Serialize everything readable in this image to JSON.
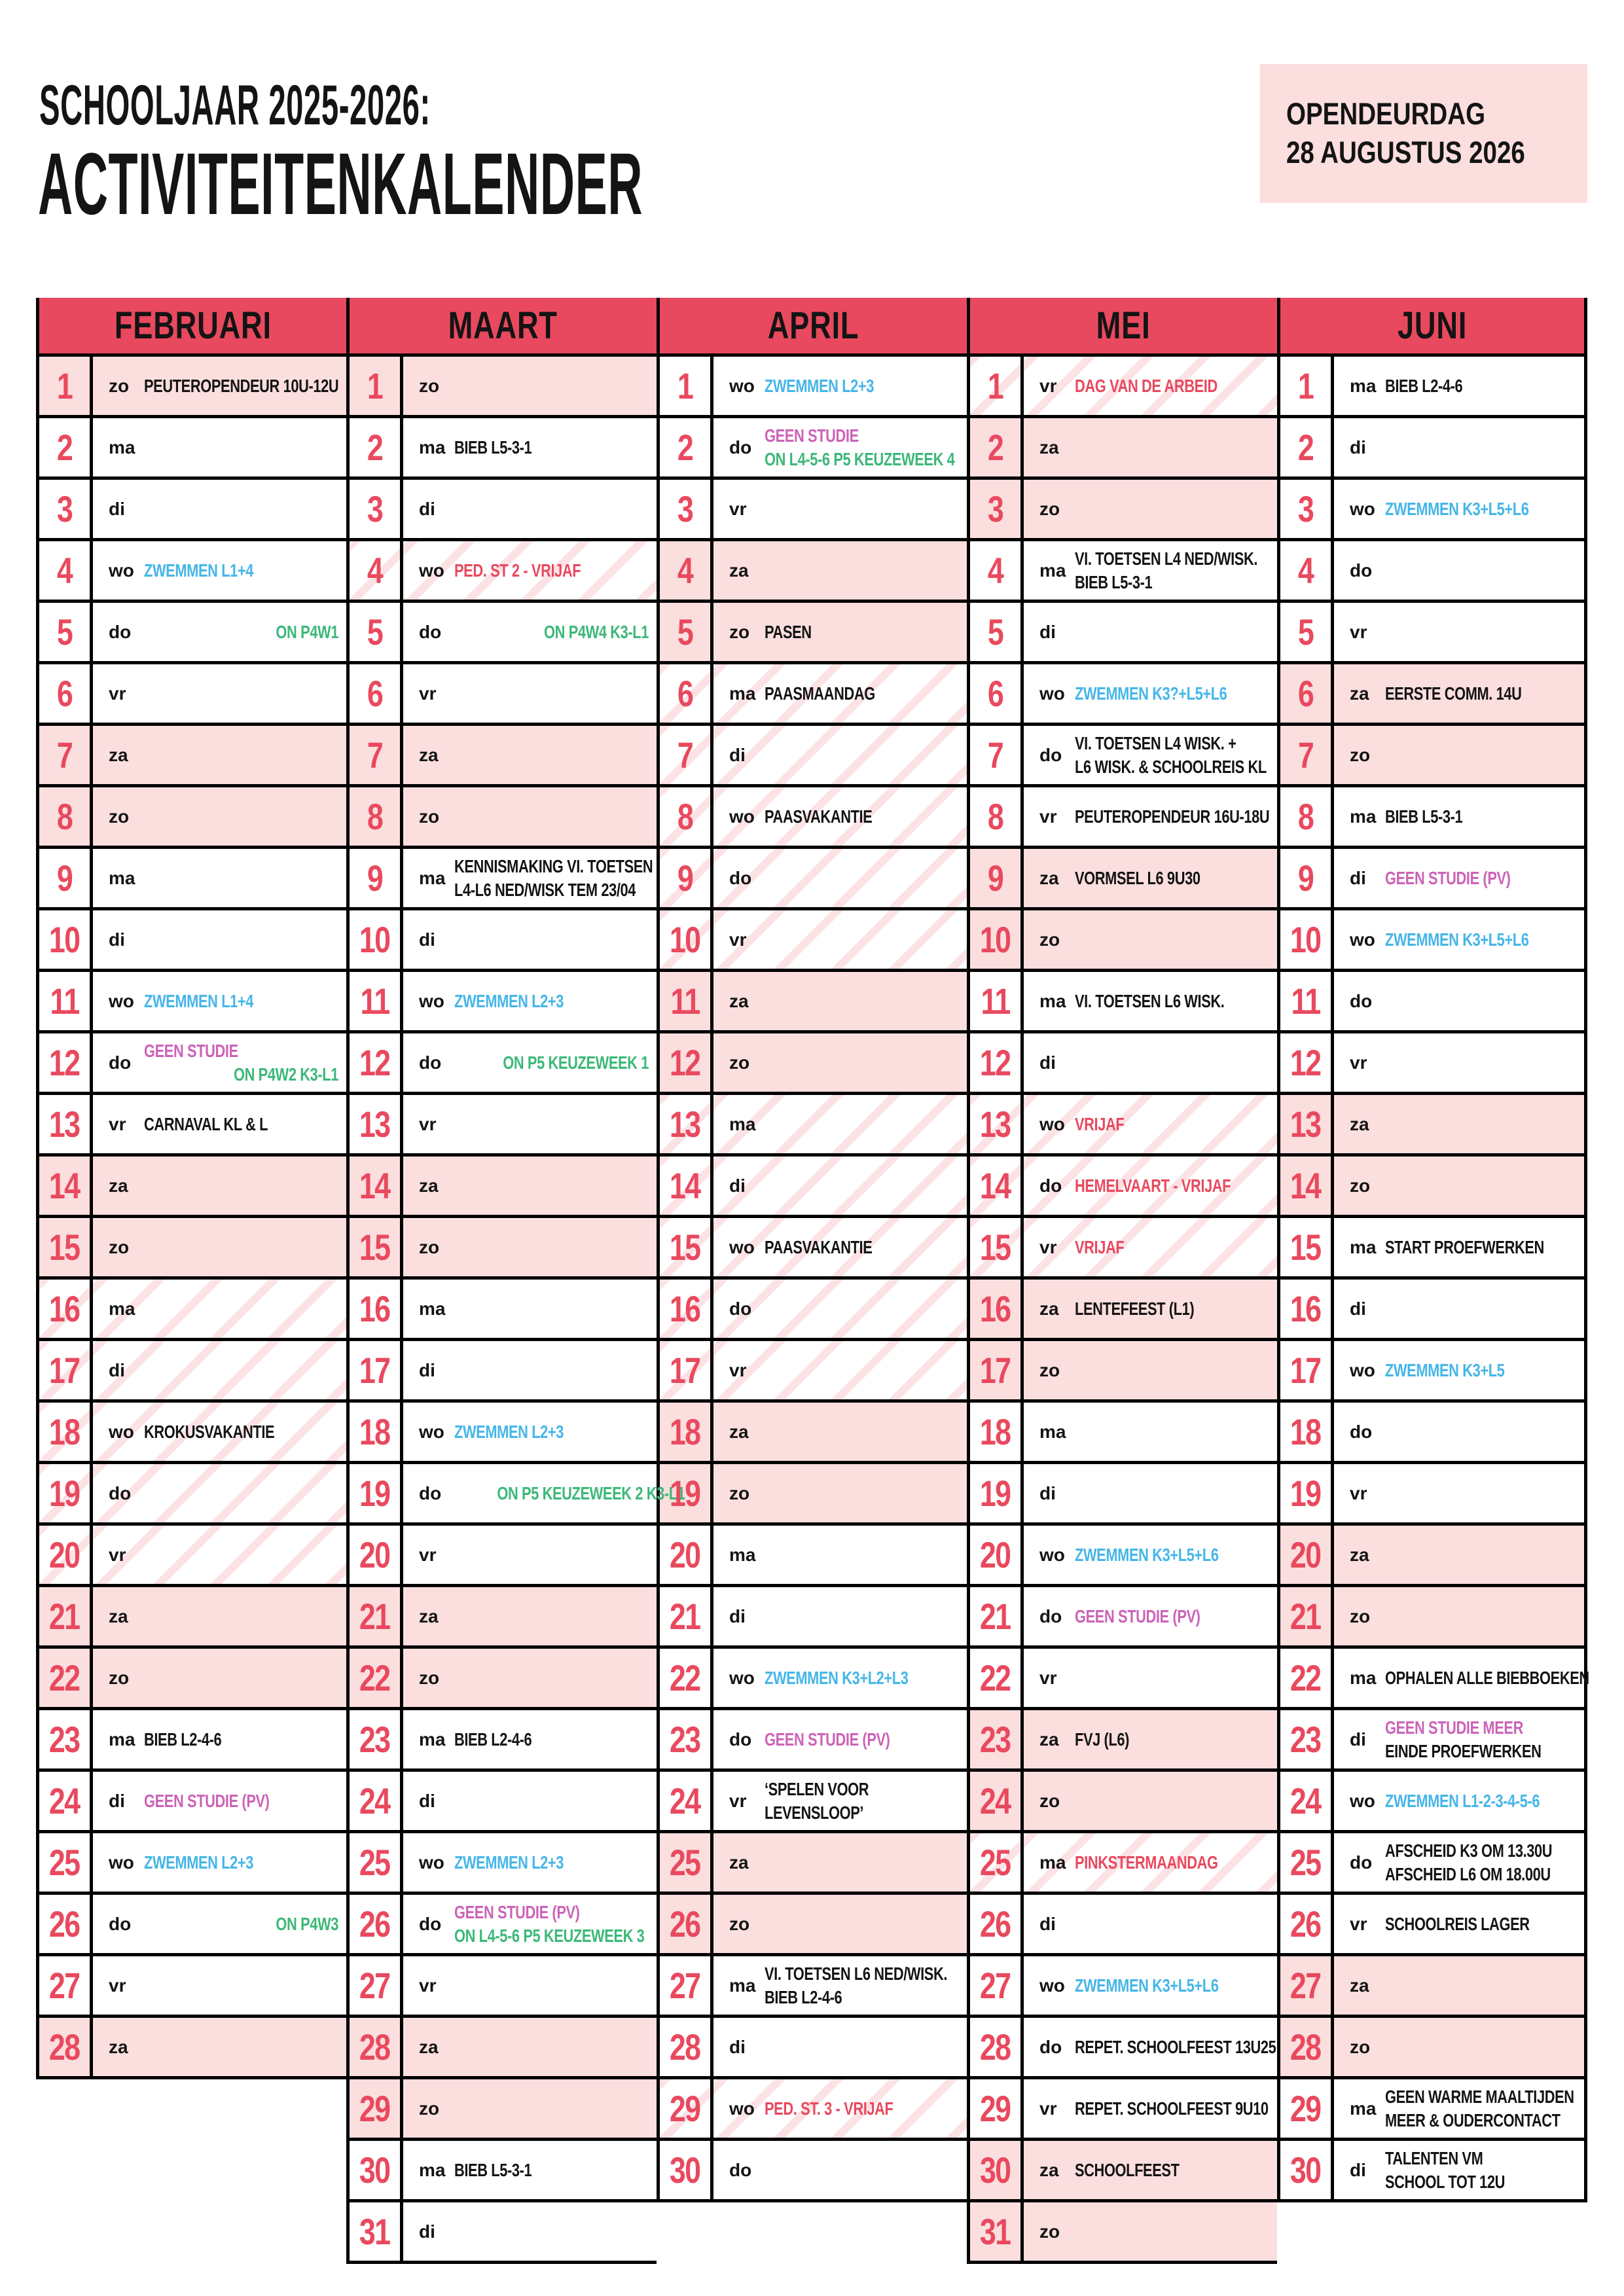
{
  "title": {
    "line1": "SCHOOLJAAR 2025-2026:",
    "line2": "ACTIVITEITENKALENDER"
  },
  "badge": {
    "line1": "OPENDEURDAG",
    "line2": "28 AUGUSTUS 2026"
  },
  "colors": {
    "accent": "#E9495E",
    "weekend_bg": "#FBDEDE",
    "hatch_stripe": "#F7D2D6",
    "swim_blue": "#45B6E8",
    "on_green": "#3CB878",
    "no_study_magenta": "#CC63B7",
    "holiday_red": "#E9495E",
    "text_black": "#141414"
  },
  "months": [
    {
      "name": "FEBRUARI",
      "days": [
        {
          "n": 1,
          "d": "zo",
          "acts": [
            {
              "t": "PEUTEROPENDEUR 10U-12U"
            }
          ]
        },
        {
          "n": 2,
          "d": "ma"
        },
        {
          "n": 3,
          "d": "di"
        },
        {
          "n": 4,
          "d": "wo",
          "acts": [
            {
              "t": "ZWEMMEN L1+4",
              "c": "blue"
            }
          ]
        },
        {
          "n": 5,
          "d": "do",
          "acts": [
            {
              "t": "ON P4W1",
              "c": "green",
              "r": true
            }
          ]
        },
        {
          "n": 6,
          "d": "vr"
        },
        {
          "n": 7,
          "d": "za"
        },
        {
          "n": 8,
          "d": "zo"
        },
        {
          "n": 9,
          "d": "ma"
        },
        {
          "n": 10,
          "d": "di"
        },
        {
          "n": 11,
          "d": "wo",
          "acts": [
            {
              "t": "ZWEMMEN L1+4",
              "c": "blue"
            }
          ]
        },
        {
          "n": 12,
          "d": "do",
          "acts": [
            {
              "t": "GEEN STUDIE",
              "c": "mag"
            },
            {
              "t": "ON P4W2 K3-L1",
              "c": "green",
              "r": true
            }
          ]
        },
        {
          "n": 13,
          "d": "vr",
          "acts": [
            {
              "t": "CARNAVAL KL & L"
            }
          ]
        },
        {
          "n": 14,
          "d": "za"
        },
        {
          "n": 15,
          "d": "zo"
        },
        {
          "n": 16,
          "d": "ma",
          "hatch": true
        },
        {
          "n": 17,
          "d": "di",
          "hatch": true
        },
        {
          "n": 18,
          "d": "wo",
          "hatch": true,
          "acts": [
            {
              "t": "KROKUSVAKANTIE"
            }
          ]
        },
        {
          "n": 19,
          "d": "do",
          "hatch": true
        },
        {
          "n": 20,
          "d": "vr",
          "hatch": true
        },
        {
          "n": 21,
          "d": "za"
        },
        {
          "n": 22,
          "d": "zo"
        },
        {
          "n": 23,
          "d": "ma",
          "acts": [
            {
              "t": "BIEB L2-4-6"
            }
          ]
        },
        {
          "n": 24,
          "d": "di",
          "acts": [
            {
              "t": "GEEN STUDIE (PV)",
              "c": "mag"
            }
          ]
        },
        {
          "n": 25,
          "d": "wo",
          "acts": [
            {
              "t": "ZWEMMEN L2+3",
              "c": "blue"
            }
          ]
        },
        {
          "n": 26,
          "d": "do",
          "acts": [
            {
              "t": "ON P4W3",
              "c": "green",
              "r": true
            }
          ]
        },
        {
          "n": 27,
          "d": "vr"
        },
        {
          "n": 28,
          "d": "za"
        }
      ]
    },
    {
      "name": "MAART",
      "days": [
        {
          "n": 1,
          "d": "zo"
        },
        {
          "n": 2,
          "d": "ma",
          "acts": [
            {
              "t": "BIEB L5-3-1"
            }
          ]
        },
        {
          "n": 3,
          "d": "di"
        },
        {
          "n": 4,
          "d": "wo",
          "hatch": true,
          "acts": [
            {
              "t": "PED. ST 2 - VRIJAF",
              "c": "red"
            }
          ]
        },
        {
          "n": 5,
          "d": "do",
          "acts": [
            {
              "t": "ON P4W4 K3-L1",
              "c": "green",
              "r": true
            }
          ]
        },
        {
          "n": 6,
          "d": "vr"
        },
        {
          "n": 7,
          "d": "za"
        },
        {
          "n": 8,
          "d": "zo"
        },
        {
          "n": 9,
          "d": "ma",
          "acts": [
            {
              "t": "KENNISMAKING VI. TOETSEN"
            },
            {
              "t": "L4-L6 NED/WISK TEM 23/04"
            }
          ]
        },
        {
          "n": 10,
          "d": "di"
        },
        {
          "n": 11,
          "d": "wo",
          "acts": [
            {
              "t": "ZWEMMEN L2+3",
              "c": "blue"
            }
          ]
        },
        {
          "n": 12,
          "d": "do",
          "acts": [
            {
              "t": "ON P5 KEUZEWEEK 1",
              "c": "green",
              "r": true
            }
          ]
        },
        {
          "n": 13,
          "d": "vr"
        },
        {
          "n": 14,
          "d": "za"
        },
        {
          "n": 15,
          "d": "zo"
        },
        {
          "n": 16,
          "d": "ma"
        },
        {
          "n": 17,
          "d": "di"
        },
        {
          "n": 18,
          "d": "wo",
          "acts": [
            {
              "t": "ZWEMMEN L2+3",
              "c": "blue"
            }
          ]
        },
        {
          "n": 19,
          "d": "do",
          "acts": [
            {
              "t": "ON P5 KEUZEWEEK 2 K3-L1",
              "c": "green",
              "r": true
            }
          ]
        },
        {
          "n": 20,
          "d": "vr"
        },
        {
          "n": 21,
          "d": "za"
        },
        {
          "n": 22,
          "d": "zo"
        },
        {
          "n": 23,
          "d": "ma",
          "acts": [
            {
              "t": "BIEB L2-4-6"
            }
          ]
        },
        {
          "n": 24,
          "d": "di"
        },
        {
          "n": 25,
          "d": "wo",
          "acts": [
            {
              "t": "ZWEMMEN L2+3",
              "c": "blue"
            }
          ]
        },
        {
          "n": 26,
          "d": "do",
          "acts": [
            {
              "t": "GEEN STUDIE (PV)",
              "c": "mag"
            },
            {
              "t": "ON L4-5-6 P5 KEUZEWEEK 3",
              "c": "green"
            }
          ]
        },
        {
          "n": 27,
          "d": "vr"
        },
        {
          "n": 28,
          "d": "za"
        },
        {
          "n": 29,
          "d": "zo"
        },
        {
          "n": 30,
          "d": "ma",
          "acts": [
            {
              "t": "BIEB L5-3-1"
            }
          ]
        },
        {
          "n": 31,
          "d": "di"
        }
      ]
    },
    {
      "name": "APRIL",
      "days": [
        {
          "n": 1,
          "d": "wo",
          "acts": [
            {
              "t": "ZWEMMEN L2+3",
              "c": "blue"
            }
          ]
        },
        {
          "n": 2,
          "d": "do",
          "acts": [
            {
              "t": "GEEN STUDIE",
              "c": "mag"
            },
            {
              "t": "ON L4-5-6 P5 KEUZEWEEK 4",
              "c": "green"
            }
          ]
        },
        {
          "n": 3,
          "d": "vr"
        },
        {
          "n": 4,
          "d": "za"
        },
        {
          "n": 5,
          "d": "zo",
          "acts": [
            {
              "t": "PASEN"
            }
          ]
        },
        {
          "n": 6,
          "d": "ma",
          "hatch": true,
          "acts": [
            {
              "t": "PAASMAANDAG"
            }
          ]
        },
        {
          "n": 7,
          "d": "di",
          "hatch": true
        },
        {
          "n": 8,
          "d": "wo",
          "hatch": true,
          "acts": [
            {
              "t": "PAASVAKANTIE"
            }
          ]
        },
        {
          "n": 9,
          "d": "do",
          "hatch": true
        },
        {
          "n": 10,
          "d": "vr",
          "hatch": true
        },
        {
          "n": 11,
          "d": "za"
        },
        {
          "n": 12,
          "d": "zo"
        },
        {
          "n": 13,
          "d": "ma",
          "hatch": true
        },
        {
          "n": 14,
          "d": "di",
          "hatch": true
        },
        {
          "n": 15,
          "d": "wo",
          "hatch": true,
          "acts": [
            {
              "t": "PAASVAKANTIE"
            }
          ]
        },
        {
          "n": 16,
          "d": "do",
          "hatch": true
        },
        {
          "n": 17,
          "d": "vr",
          "hatch": true
        },
        {
          "n": 18,
          "d": "za"
        },
        {
          "n": 19,
          "d": "zo"
        },
        {
          "n": 20,
          "d": "ma"
        },
        {
          "n": 21,
          "d": "di"
        },
        {
          "n": 22,
          "d": "wo",
          "acts": [
            {
              "t": "ZWEMMEN K3+L2+L3",
              "c": "blue"
            }
          ]
        },
        {
          "n": 23,
          "d": "do",
          "acts": [
            {
              "t": "GEEN STUDIE (PV)",
              "c": "mag"
            }
          ]
        },
        {
          "n": 24,
          "d": "vr",
          "acts": [
            {
              "t": "‘SPELEN VOOR"
            },
            {
              "t": "LEVENSLOOP’"
            }
          ]
        },
        {
          "n": 25,
          "d": "za"
        },
        {
          "n": 26,
          "d": "zo"
        },
        {
          "n": 27,
          "d": "ma",
          "acts": [
            {
              "t": "VI. TOETSEN L6 NED/WISK."
            },
            {
              "t": "BIEB L2-4-6"
            }
          ]
        },
        {
          "n": 28,
          "d": "di"
        },
        {
          "n": 29,
          "d": "wo",
          "hatch": true,
          "acts": [
            {
              "t": "PED. ST. 3 - VRIJAF",
              "c": "red"
            }
          ]
        },
        {
          "n": 30,
          "d": "do"
        }
      ]
    },
    {
      "name": "MEI",
      "days": [
        {
          "n": 1,
          "d": "vr",
          "hatch": true,
          "acts": [
            {
              "t": "DAG VAN DE ARBEID",
              "c": "red"
            }
          ]
        },
        {
          "n": 2,
          "d": "za"
        },
        {
          "n": 3,
          "d": "zo"
        },
        {
          "n": 4,
          "d": "ma",
          "acts": [
            {
              "t": "VI. TOETSEN L4 NED/WISK."
            },
            {
              "t": "BIEB L5-3-1"
            }
          ]
        },
        {
          "n": 5,
          "d": "di"
        },
        {
          "n": 6,
          "d": "wo",
          "acts": [
            {
              "t": "ZWEMMEN K3?+L5+L6",
              "c": "blue"
            }
          ]
        },
        {
          "n": 7,
          "d": "do",
          "acts": [
            {
              "t": "VI. TOETSEN L4 WISK. +"
            },
            {
              "t": "L6 WISK. & SCHOOLREIS KL"
            }
          ]
        },
        {
          "n": 8,
          "d": "vr",
          "acts": [
            {
              "t": "PEUTEROPENDEUR 16U-18U"
            }
          ]
        },
        {
          "n": 9,
          "d": "za",
          "acts": [
            {
              "t": "VORMSEL L6 9U30"
            }
          ]
        },
        {
          "n": 10,
          "d": "zo"
        },
        {
          "n": 11,
          "d": "ma",
          "acts": [
            {
              "t": "VI. TOETSEN L6 WISK."
            }
          ]
        },
        {
          "n": 12,
          "d": "di"
        },
        {
          "n": 13,
          "d": "wo",
          "hatch": true,
          "acts": [
            {
              "t": "VRIJAF",
              "c": "red"
            }
          ]
        },
        {
          "n": 14,
          "d": "do",
          "hatch": true,
          "acts": [
            {
              "t": "HEMELVAART - VRIJAF",
              "c": "red"
            }
          ]
        },
        {
          "n": 15,
          "d": "vr",
          "hatch": true,
          "acts": [
            {
              "t": "VRIJAF",
              "c": "red"
            }
          ]
        },
        {
          "n": 16,
          "d": "za",
          "acts": [
            {
              "t": "LENTEFEEST (L1)"
            }
          ]
        },
        {
          "n": 17,
          "d": "zo"
        },
        {
          "n": 18,
          "d": "ma"
        },
        {
          "n": 19,
          "d": "di"
        },
        {
          "n": 20,
          "d": "wo",
          "acts": [
            {
              "t": "ZWEMMEN K3+L5+L6",
              "c": "blue"
            }
          ]
        },
        {
          "n": 21,
          "d": "do",
          "acts": [
            {
              "t": "GEEN STUDIE (PV)",
              "c": "mag"
            }
          ]
        },
        {
          "n": 22,
          "d": "vr"
        },
        {
          "n": 23,
          "d": "za",
          "acts": [
            {
              "t": "FVJ (L6)"
            }
          ]
        },
        {
          "n": 24,
          "d": "zo"
        },
        {
          "n": 25,
          "d": "ma",
          "hatch": true,
          "acts": [
            {
              "t": "PINKSTERMAANDAG",
              "c": "red"
            }
          ]
        },
        {
          "n": 26,
          "d": "di"
        },
        {
          "n": 27,
          "d": "wo",
          "acts": [
            {
              "t": "ZWEMMEN K3+L5+L6",
              "c": "blue"
            }
          ]
        },
        {
          "n": 28,
          "d": "do",
          "acts": [
            {
              "t": "REPET. SCHOOLFEEST 13U25"
            }
          ]
        },
        {
          "n": 29,
          "d": "vr",
          "acts": [
            {
              "t": "REPET. SCHOOLFEEST 9U10"
            }
          ]
        },
        {
          "n": 30,
          "d": "za",
          "acts": [
            {
              "t": "SCHOOLFEEST"
            }
          ]
        },
        {
          "n": 31,
          "d": "zo"
        }
      ]
    },
    {
      "name": "JUNI",
      "days": [
        {
          "n": 1,
          "d": "ma",
          "acts": [
            {
              "t": "BIEB L2-4-6"
            }
          ]
        },
        {
          "n": 2,
          "d": "di"
        },
        {
          "n": 3,
          "d": "wo",
          "acts": [
            {
              "t": "ZWEMMEN K3+L5+L6",
              "c": "blue"
            }
          ]
        },
        {
          "n": 4,
          "d": "do"
        },
        {
          "n": 5,
          "d": "vr"
        },
        {
          "n": 6,
          "d": "za",
          "acts": [
            {
              "t": "EERSTE COMM. 14U"
            }
          ]
        },
        {
          "n": 7,
          "d": "zo"
        },
        {
          "n": 8,
          "d": "ma",
          "acts": [
            {
              "t": "BIEB L5-3-1"
            }
          ]
        },
        {
          "n": 9,
          "d": "di",
          "acts": [
            {
              "t": "GEEN STUDIE (PV)",
              "c": "mag"
            }
          ]
        },
        {
          "n": 10,
          "d": "wo",
          "acts": [
            {
              "t": "ZWEMMEN K3+L5+L6",
              "c": "blue"
            }
          ]
        },
        {
          "n": 11,
          "d": "do"
        },
        {
          "n": 12,
          "d": "vr"
        },
        {
          "n": 13,
          "d": "za"
        },
        {
          "n": 14,
          "d": "zo"
        },
        {
          "n": 15,
          "d": "ma",
          "acts": [
            {
              "t": "START PROEFWERKEN"
            }
          ]
        },
        {
          "n": 16,
          "d": "di"
        },
        {
          "n": 17,
          "d": "wo",
          "acts": [
            {
              "t": "ZWEMMEN K3+L5",
              "c": "blue"
            }
          ]
        },
        {
          "n": 18,
          "d": "do"
        },
        {
          "n": 19,
          "d": "vr"
        },
        {
          "n": 20,
          "d": "za"
        },
        {
          "n": 21,
          "d": "zo"
        },
        {
          "n": 22,
          "d": "ma",
          "acts": [
            {
              "t": "OPHALEN ALLE BIEBBOEKEN"
            }
          ]
        },
        {
          "n": 23,
          "d": "di",
          "acts": [
            {
              "t": "GEEN STUDIE MEER",
              "c": "mag"
            },
            {
              "t": "EINDE PROEFWERKEN"
            }
          ]
        },
        {
          "n": 24,
          "d": "wo",
          "acts": [
            {
              "t": "ZWEMMEN L1-2-3-4-5-6",
              "c": "blue"
            }
          ]
        },
        {
          "n": 25,
          "d": "do",
          "acts": [
            {
              "t": "AFSCHEID K3 OM 13.30U"
            },
            {
              "t": "AFSCHEID L6 OM 18.00U"
            }
          ]
        },
        {
          "n": 26,
          "d": "vr",
          "acts": [
            {
              "t": "SCHOOLREIS LAGER"
            }
          ]
        },
        {
          "n": 27,
          "d": "za"
        },
        {
          "n": 28,
          "d": "zo"
        },
        {
          "n": 29,
          "d": "ma",
          "acts": [
            {
              "t": "GEEN WARME MAALTIJDEN"
            },
            {
              "t": "MEER & OUDERCONTACT"
            }
          ]
        },
        {
          "n": 30,
          "d": "di",
          "acts": [
            {
              "t": "TALENTEN VM"
            },
            {
              "t": "SCHOOL TOT 12U"
            }
          ]
        }
      ]
    }
  ]
}
